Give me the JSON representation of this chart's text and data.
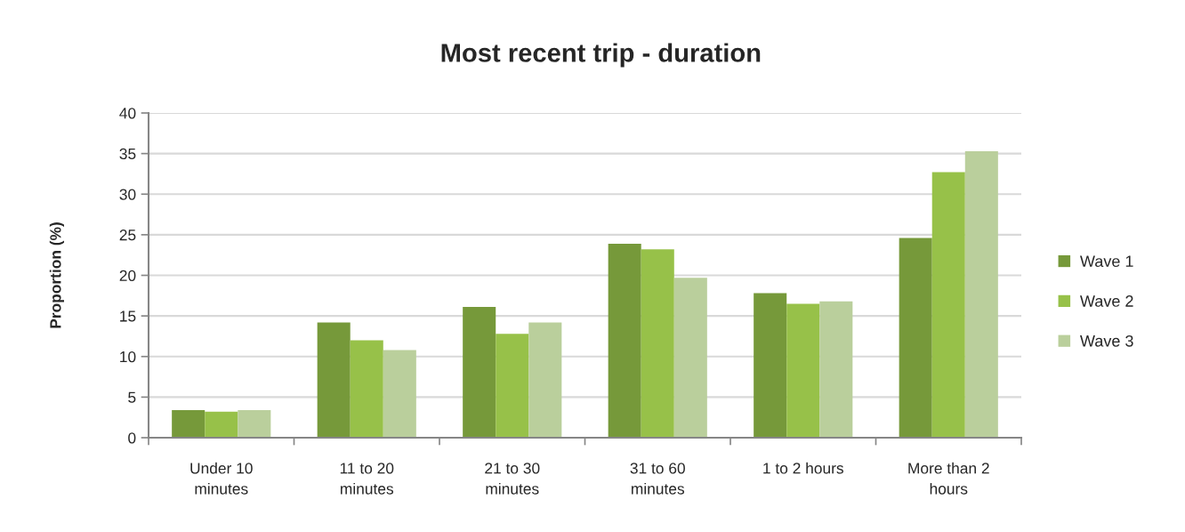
{
  "chart_data": {
    "type": "bar",
    "title": "Most recent trip - duration",
    "ylabel": "Proportion (%)",
    "categories": [
      "Under 10 minutes",
      "11 to 20 minutes",
      "21 to 30 minutes",
      "31 to 60 minutes",
      "1 to 2 hours",
      "More than 2 hours"
    ],
    "series": [
      {
        "name": "Wave 1",
        "color": "#76993a",
        "values": [
          3.4,
          14.2,
          16.1,
          23.9,
          17.8,
          24.6
        ]
      },
      {
        "name": "Wave 2",
        "color": "#97c149",
        "values": [
          3.2,
          12.0,
          12.8,
          23.2,
          16.5,
          32.7
        ]
      },
      {
        "name": "Wave 3",
        "color": "#bacf9c",
        "values": [
          3.4,
          10.8,
          14.2,
          19.7,
          16.8,
          35.3
        ]
      }
    ],
    "ylim": [
      0,
      40
    ],
    "yticks": [
      0,
      5,
      10,
      15,
      20,
      25,
      30,
      35,
      40
    ],
    "grid": "y",
    "legend": "right"
  }
}
